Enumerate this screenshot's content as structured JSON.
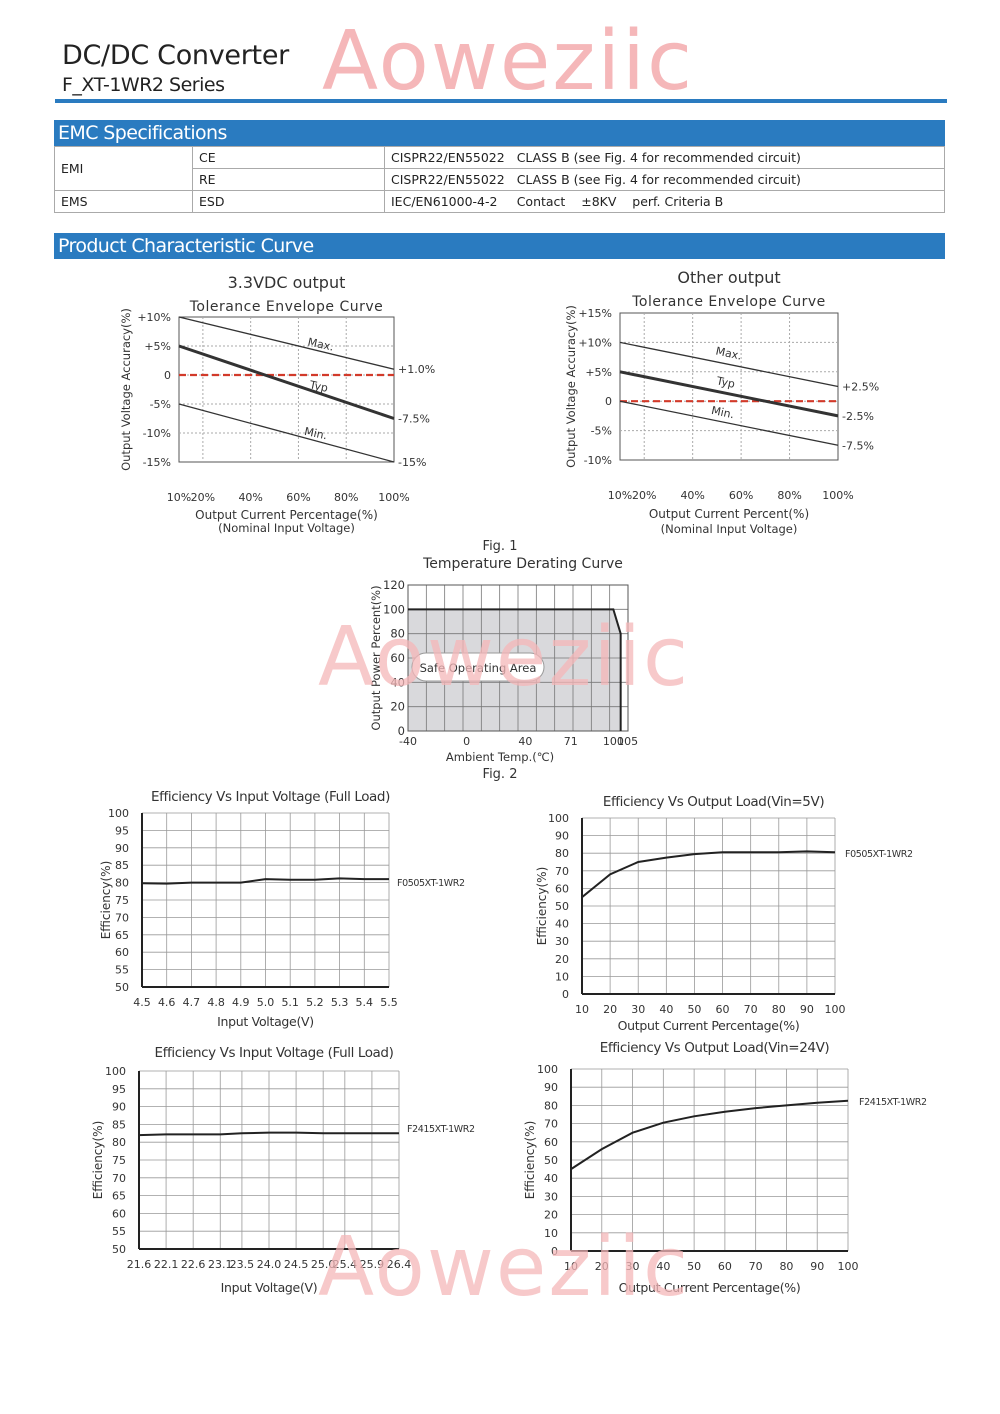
{
  "header": {
    "title": "DC/DC Converter",
    "series": "F_XT-1WR2 Series",
    "watermark": "Aoweziic"
  },
  "emc": {
    "section_title": "EMC Specifications",
    "rows": [
      {
        "group": "EMI",
        "item": "CE",
        "standard": "CISPR22/EN55022",
        "spec": "CLASS B (see Fig. 4 for recommended circuit)"
      },
      {
        "group": "",
        "item": "RE",
        "standard": "CISPR22/EN55022",
        "spec": "CLASS B (see Fig. 4 for recommended circuit)"
      },
      {
        "group": "EMS",
        "item": "ESD",
        "standard": "IEC/EN61000-4-2",
        "spec": "Contact    ±8KV    perf. Criteria B"
      }
    ]
  },
  "curves": {
    "section_title": "Product Characteristic Curve",
    "fig1_caption": "Fig. 1",
    "fig2_caption": "Fig. 2"
  },
  "colors": {
    "accent": "#2a7bc0",
    "nominal_dash": "#d23a2a",
    "watermark": "#f5b7b9",
    "soa_fill": "#d9d9dc"
  },
  "chart_data": [
    {
      "id": "tol33",
      "type": "line",
      "title": "3.3VDC output",
      "subtitle": "Tolerance Envelope  Curve",
      "xlabel": "Output Current Percentage(%)",
      "xlabel2": "(Nominal Input Voltage)",
      "ylabel": "Output  Voltage Accuracy(%)",
      "xlim": [
        10,
        100
      ],
      "ylim": [
        -15,
        10
      ],
      "x_ticks": [
        10,
        20,
        40,
        60,
        80,
        100
      ],
      "x_tick_labels": [
        "10%",
        "20%",
        "40%",
        "60%",
        "80%",
        "100%"
      ],
      "y_ticks": [
        10,
        5,
        0,
        -5,
        -10,
        -15
      ],
      "y_tick_labels": [
        "+10%",
        "+5%",
        "0",
        "-5%",
        "-10%",
        "-15%"
      ],
      "grid": true,
      "series": [
        {
          "name": "Max.",
          "x": [
            10,
            100
          ],
          "y": [
            10,
            1
          ],
          "end_label": "+1.0%"
        },
        {
          "name": "Typ",
          "x": [
            10,
            100
          ],
          "y": [
            5,
            -7.5
          ],
          "end_label": "-7.5%"
        },
        {
          "name": "Min.",
          "x": [
            10,
            100
          ],
          "y": [
            -5,
            -15
          ],
          "end_label": "-15%"
        }
      ],
      "nominal_line": 0
    },
    {
      "id": "tolOther",
      "type": "line",
      "title": "Other output",
      "subtitle": "Tolerance Envelope  Curve",
      "xlabel": "Output Current Percent(%)",
      "xlabel2": "(Nominal Input Voltage)",
      "ylabel": "Output  Voltage Accuracy(%)",
      "xlim": [
        10,
        100
      ],
      "ylim": [
        -10,
        15
      ],
      "x_ticks": [
        10,
        20,
        40,
        60,
        80,
        100
      ],
      "x_tick_labels": [
        "10%",
        "20%",
        "40%",
        "60%",
        "80%",
        "100%"
      ],
      "y_ticks": [
        15,
        10,
        5,
        0,
        -5,
        -10
      ],
      "y_tick_labels": [
        "+15%",
        "+10%",
        "+5%",
        "0",
        "-5%",
        "-10%"
      ],
      "grid": true,
      "series": [
        {
          "name": "Max.",
          "x": [
            10,
            100
          ],
          "y": [
            10,
            2.5
          ],
          "end_label": "+2.5%"
        },
        {
          "name": "Typ",
          "x": [
            10,
            100
          ],
          "y": [
            5,
            -2.5
          ],
          "end_label": "-2.5%"
        },
        {
          "name": "Min.",
          "x": [
            10,
            100
          ],
          "y": [
            0,
            -7.5
          ],
          "end_label": "-7.5%"
        }
      ],
      "nominal_line": 0
    },
    {
      "id": "derating",
      "type": "area",
      "title": "Temperature Derating Curve",
      "xlabel": "Ambient  Temp.(℃)",
      "ylabel": "Output Power Percent(%)",
      "xlim": [
        -40,
        110
      ],
      "ylim": [
        0,
        120
      ],
      "x_ticks": [
        -40,
        0,
        40,
        71,
        100,
        105
      ],
      "x_tick_labels": [
        "-40",
        "0",
        "40",
        "71",
        "100",
        "105"
      ],
      "y_ticks": [
        0,
        20,
        40,
        60,
        80,
        100,
        120
      ],
      "grid": true,
      "series": [
        {
          "x": [
            -40,
            100,
            105,
            105
          ],
          "y": [
            100,
            100,
            80,
            0
          ]
        }
      ],
      "annotation": "Safe Operating Area"
    },
    {
      "id": "effVin5",
      "type": "line",
      "title": "Efficiency Vs Input Voltage (Full Load)",
      "xlabel": "Input Voltage(V)",
      "ylabel": "Efficiency(%)",
      "xlim": [
        4.5,
        5.5
      ],
      "ylim": [
        50,
        100
      ],
      "x_ticks": [
        4.5,
        4.6,
        4.7,
        4.8,
        4.9,
        5.0,
        5.1,
        5.2,
        5.3,
        5.4,
        5.5
      ],
      "x_tick_labels": [
        "4.5",
        "4.6",
        "4.7",
        "4.8",
        "4.9",
        "5.0",
        "5.1",
        "5.2",
        "5.3",
        "5.4",
        "5.5"
      ],
      "y_ticks": [
        50,
        55,
        60,
        65,
        70,
        75,
        80,
        85,
        90,
        95,
        100
      ],
      "grid": true,
      "series": [
        {
          "name": "F0505XT-1WR2",
          "x": [
            4.5,
            4.6,
            4.7,
            4.8,
            4.9,
            5.0,
            5.1,
            5.2,
            5.3,
            5.4,
            5.5
          ],
          "y": [
            79.8,
            79.7,
            80,
            80,
            80,
            81,
            80.8,
            80.8,
            81.2,
            81,
            81
          ]
        }
      ]
    },
    {
      "id": "effLoad5",
      "type": "line",
      "title": "Efficiency Vs Output Load(Vin=5V)",
      "xlabel": "Output Current Percentage(%)",
      "ylabel": "Efficiency(%)",
      "xlim": [
        10,
        100
      ],
      "ylim": [
        0,
        100
      ],
      "x_ticks": [
        10,
        20,
        30,
        40,
        50,
        60,
        70,
        80,
        90,
        100
      ],
      "x_tick_labels": [
        "10",
        "20",
        "30",
        "40",
        "50",
        "60",
        "70",
        "80",
        "90",
        "100"
      ],
      "y_ticks": [
        0,
        10,
        20,
        30,
        40,
        50,
        60,
        70,
        80,
        90,
        100
      ],
      "grid": true,
      "series": [
        {
          "name": "F0505XT-1WR2",
          "x": [
            10,
            20,
            30,
            40,
            50,
            60,
            70,
            80,
            90,
            100
          ],
          "y": [
            55,
            68,
            75,
            77.5,
            79.5,
            80.5,
            80.5,
            80.5,
            81,
            80.5
          ]
        }
      ]
    },
    {
      "id": "effVin24",
      "type": "line",
      "title": "Efficiency Vs Input Voltage (Full Load)",
      "xlabel": "Input Voltage(V)",
      "ylabel": "Efficiency(%)",
      "xlim": [
        21.6,
        26.4
      ],
      "ylim": [
        50,
        100
      ],
      "x_ticks": [
        21.6,
        22.1,
        22.6,
        23.1,
        23.5,
        24.0,
        24.5,
        25.0,
        25.4,
        25.9,
        26.4
      ],
      "x_tick_labels": [
        "21.6",
        "22.1",
        "22.6",
        "23.1",
        "23.5",
        "24.0",
        "24.5",
        "25.0",
        "25.4",
        "25.9",
        "26.4"
      ],
      "y_ticks": [
        50,
        55,
        60,
        65,
        70,
        75,
        80,
        85,
        90,
        95,
        100
      ],
      "grid": true,
      "series": [
        {
          "name": "F2415XT-1WR2",
          "x": [
            21.6,
            22.1,
            22.6,
            23.1,
            23.5,
            24.0,
            24.5,
            25.0,
            25.4,
            25.9,
            26.4
          ],
          "y": [
            82,
            82.2,
            82.2,
            82.2,
            82.5,
            82.7,
            82.7,
            82.5,
            82.5,
            82.5,
            82.5
          ]
        }
      ]
    },
    {
      "id": "effLoad24",
      "type": "line",
      "title": "Efficiency Vs Output Load(Vin=24V)",
      "xlabel": "Output Current Percentage(%)",
      "ylabel": "Efficiency(%)",
      "xlim": [
        10,
        100
      ],
      "ylim": [
        0,
        100
      ],
      "x_ticks": [
        10,
        20,
        30,
        40,
        50,
        60,
        70,
        80,
        90,
        100
      ],
      "x_tick_labels": [
        "10",
        "20",
        "30",
        "40",
        "50",
        "60",
        "70",
        "80",
        "90",
        "100"
      ],
      "y_ticks": [
        0,
        10,
        20,
        30,
        40,
        50,
        60,
        70,
        80,
        90,
        100
      ],
      "grid": true,
      "series": [
        {
          "name": "F2415XT-1WR2",
          "x": [
            10,
            20,
            30,
            40,
            50,
            60,
            70,
            80,
            90,
            100
          ],
          "y": [
            45,
            56,
            65,
            70.5,
            74,
            76.5,
            78.5,
            80,
            81.5,
            82.5
          ]
        }
      ]
    }
  ]
}
